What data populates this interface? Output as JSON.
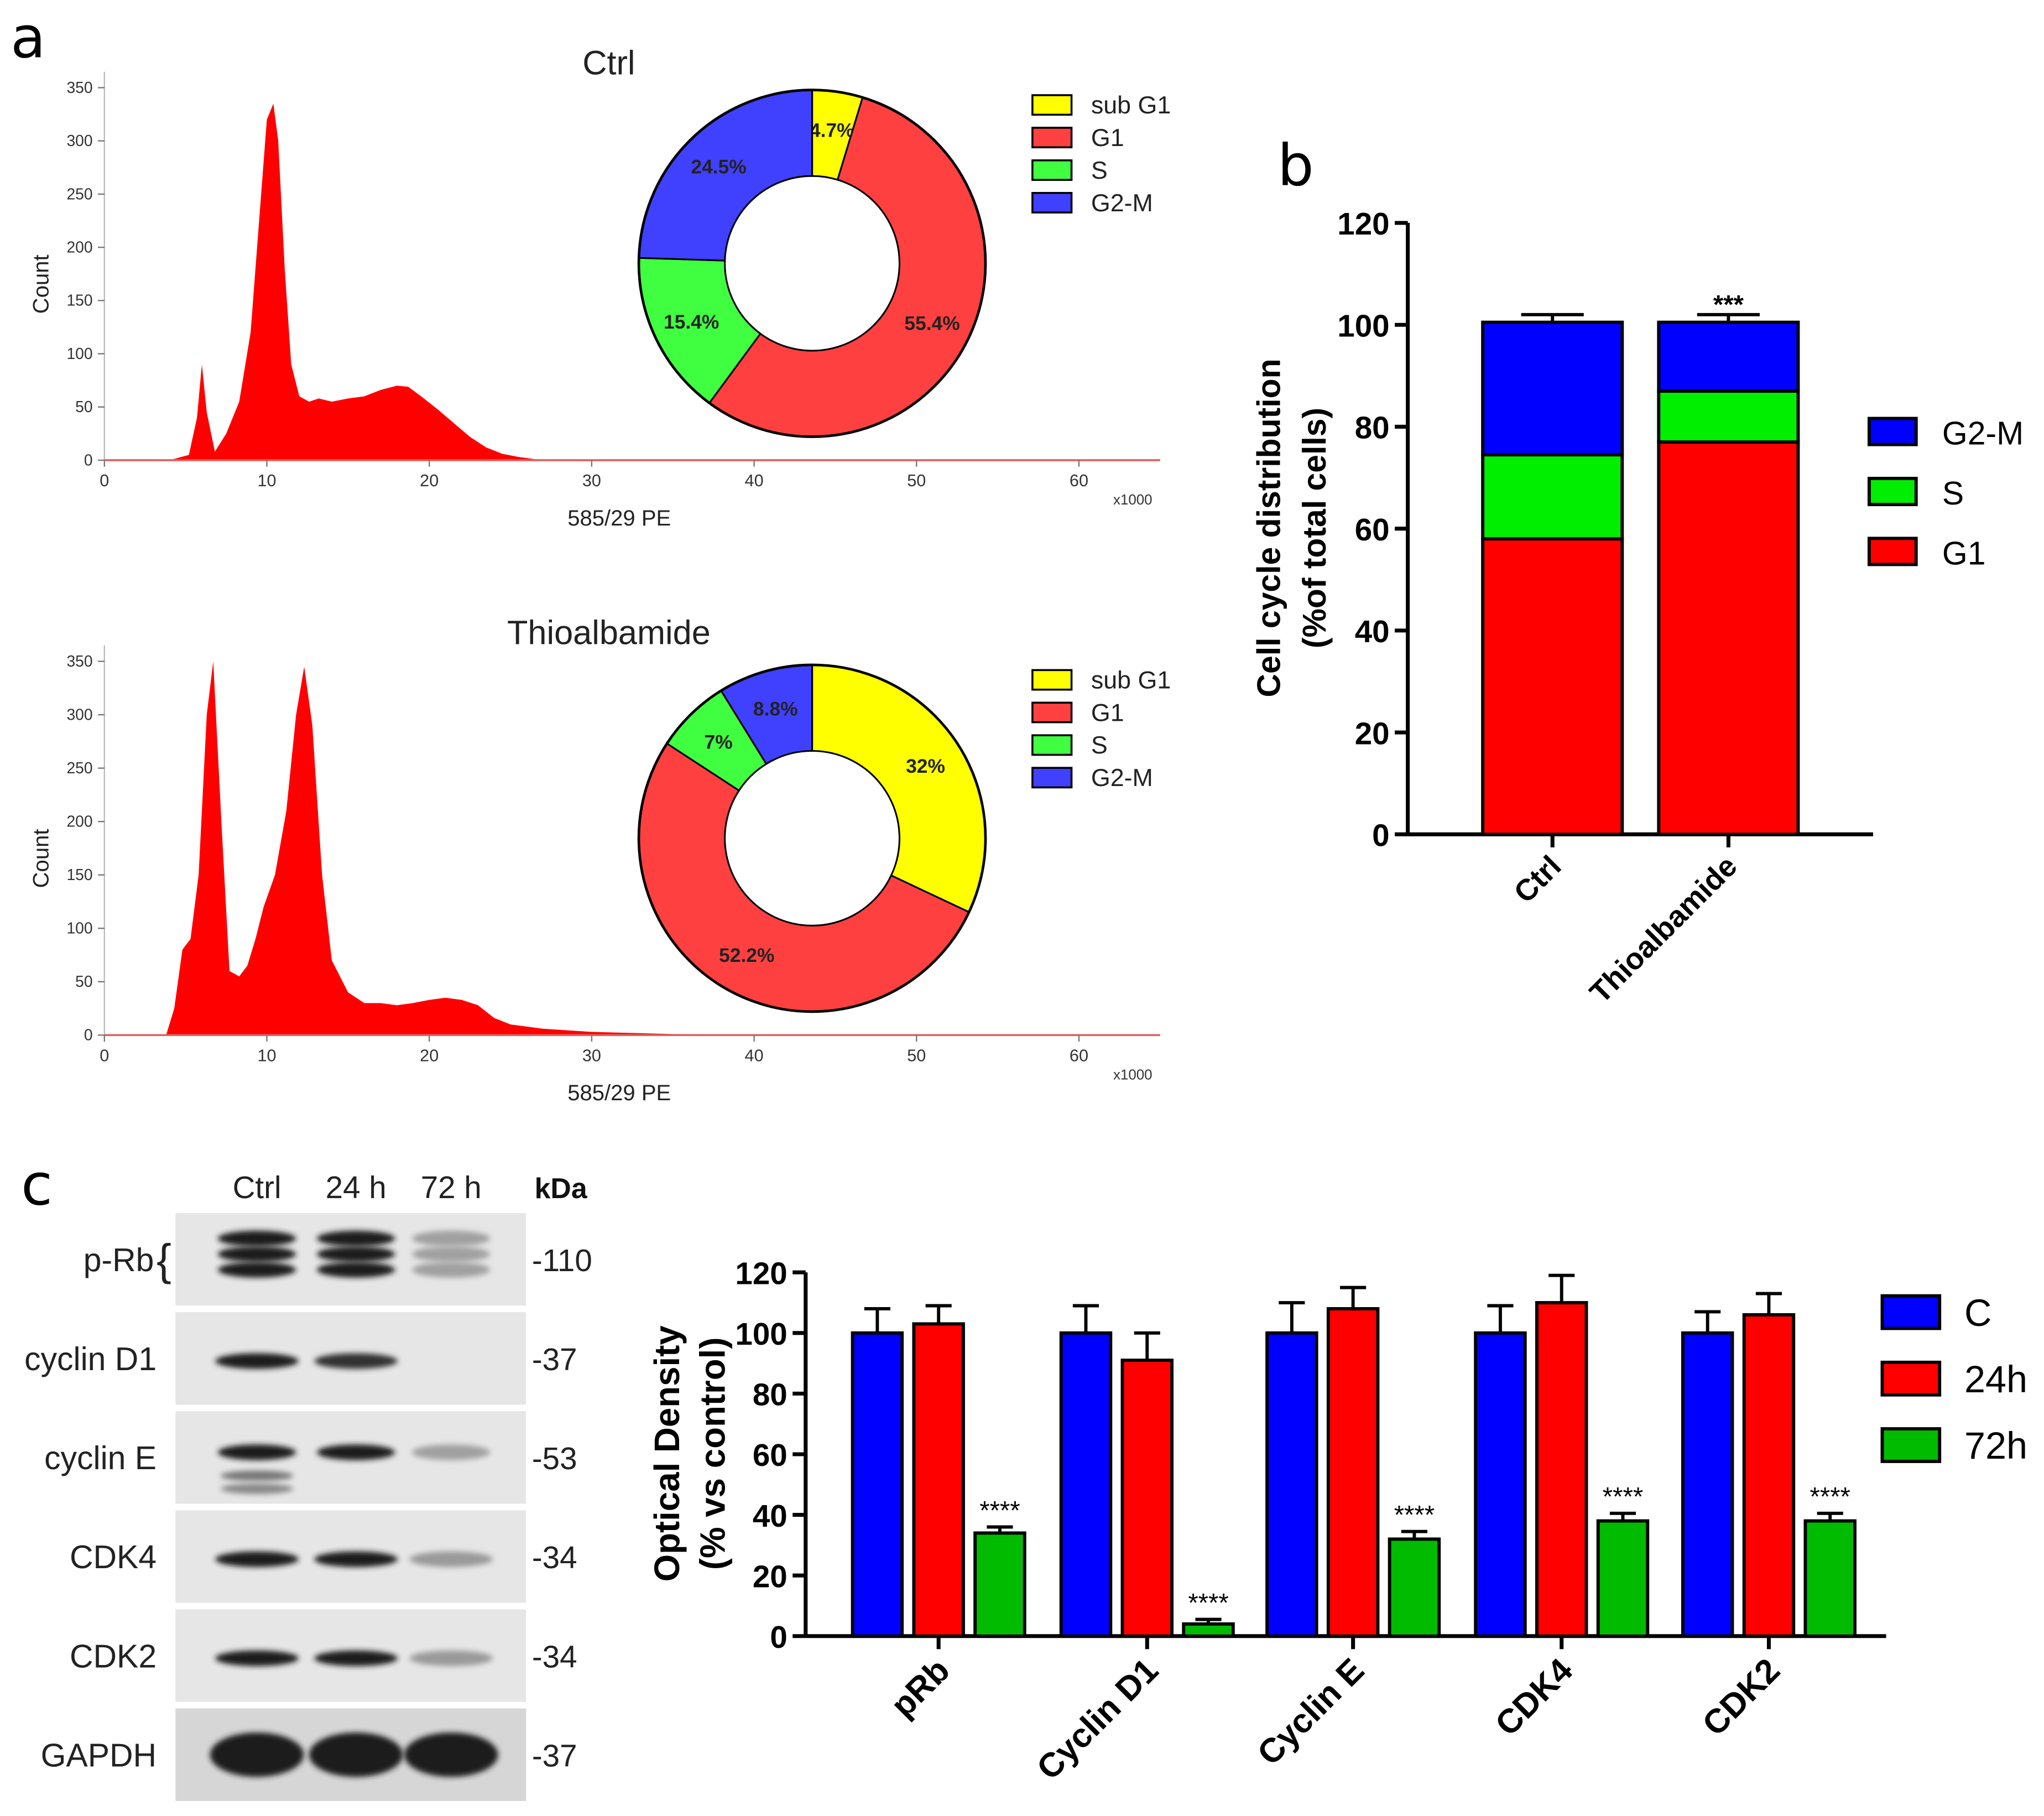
{
  "panel_labels": {
    "a": "a",
    "b": "b",
    "c": "c"
  },
  "colors": {
    "sub_g1": "#ffff00",
    "g1": "#ff4040",
    "s": "#40ff40",
    "g2m": "#4040ff",
    "hist": "#ff0000",
    "bar_g1": "#ff0000",
    "bar_s": "#00ee00",
    "bar_g2m": "#0000ff",
    "od_c": "#0000ff",
    "od_24h": "#ff0000",
    "od_72h": "#00bb00"
  },
  "chart_data": [
    {
      "id": "hist-ctrl",
      "type": "area",
      "title": "Ctrl",
      "xlabel": "585/29 PE",
      "ylabel": "Count",
      "x_multiplier": "x1000",
      "xlim": [
        0,
        65
      ],
      "ylim": [
        0,
        365
      ],
      "xticks": [
        0,
        10,
        20,
        30,
        40,
        50,
        60
      ],
      "yticks": [
        0,
        50,
        100,
        150,
        200,
        250,
        300,
        350
      ],
      "x": [
        0,
        4,
        5.2,
        5.7,
        6.0,
        6.3,
        6.8,
        7.5,
        8.3,
        9.0,
        9.5,
        10.0,
        10.4,
        10.7,
        11.1,
        11.5,
        12.0,
        12.6,
        13.2,
        14,
        15,
        16,
        17,
        18,
        18.7,
        19.5,
        20.5,
        21.5,
        22.5,
        23.5,
        24.5,
        25.5,
        27,
        65
      ],
      "values": [
        0,
        0,
        5,
        40,
        90,
        45,
        8,
        25,
        55,
        120,
        220,
        320,
        335,
        300,
        180,
        90,
        60,
        55,
        58,
        55,
        58,
        60,
        66,
        70,
        69,
        60,
        48,
        35,
        22,
        12,
        6,
        3,
        0,
        0
      ]
    },
    {
      "id": "donut-ctrl",
      "type": "pie",
      "categories": [
        "sub G1",
        "G1",
        "S",
        "G2-M"
      ],
      "values": [
        4.7,
        55.4,
        15.4,
        24.5
      ],
      "labels": [
        "4.7%",
        "55.4%",
        "15.4%",
        "24.5%"
      ],
      "legend_position": "right"
    },
    {
      "id": "hist-thio",
      "type": "area",
      "title": "Thioalbamide",
      "xlabel": "585/29 PE",
      "ylabel": "Count",
      "x_multiplier": "x1000",
      "xlim": [
        0,
        65
      ],
      "ylim": [
        0,
        365
      ],
      "xticks": [
        0,
        10,
        20,
        30,
        40,
        50,
        60
      ],
      "yticks": [
        0,
        50,
        100,
        150,
        200,
        250,
        300,
        350
      ],
      "x": [
        0,
        3.8,
        4.3,
        4.8,
        5.3,
        5.8,
        6.3,
        6.7,
        7.2,
        7.7,
        8.3,
        8.8,
        9.3,
        9.8,
        10.5,
        11.2,
        11.8,
        12.3,
        12.8,
        13.4,
        14,
        15,
        16,
        17,
        18,
        19,
        20,
        21,
        22,
        23,
        24,
        25,
        27,
        30,
        35,
        65
      ],
      "values": [
        0,
        0,
        25,
        80,
        90,
        150,
        300,
        350,
        200,
        60,
        55,
        65,
        90,
        120,
        150,
        210,
        300,
        345,
        290,
        150,
        70,
        40,
        30,
        30,
        28,
        30,
        33,
        35,
        33,
        28,
        16,
        10,
        6,
        3,
        1,
        0
      ]
    },
    {
      "id": "donut-thio",
      "type": "pie",
      "categories": [
        "sub G1",
        "G1",
        "S",
        "G2-M"
      ],
      "values": [
        32,
        52.2,
        7,
        8.8
      ],
      "labels": [
        "32%",
        "52.2%",
        "7%",
        "8.8%"
      ],
      "legend_position": "right"
    },
    {
      "id": "stacked-b",
      "type": "bar",
      "stacked": true,
      "categories": [
        "Ctrl",
        "Thioalbamide"
      ],
      "ylabel": "Cell cycle distribution\n(%of total cells)",
      "ylim": [
        0,
        120
      ],
      "yticks": [
        0,
        20,
        40,
        60,
        80,
        100,
        120
      ],
      "series": [
        {
          "name": "G1",
          "values": [
            58,
            77
          ],
          "errors": [
            3,
            3.5
          ]
        },
        {
          "name": "S",
          "values": [
            16.5,
            10
          ],
          "errors": [
            1.5,
            1.5
          ]
        },
        {
          "name": "G2-M",
          "values": [
            26,
            13.5
          ],
          "errors": [
            1.5,
            1.5
          ]
        }
      ],
      "legend_order": [
        "G2-M",
        "S",
        "G1"
      ],
      "legend_position": "right",
      "annotations": [
        {
          "category": "Thioalbamide",
          "series": "G2-M",
          "text": "***"
        },
        {
          "category": "Thioalbamide",
          "series": "S",
          "text": "****"
        }
      ]
    },
    {
      "id": "grouped-c",
      "type": "bar",
      "categories": [
        "pRb",
        "Cyclin D1",
        "Cyclin E",
        "CDK4",
        "CDK2"
      ],
      "ylabel": "Optical Density\n(% vs control)",
      "ylim": [
        0,
        120
      ],
      "yticks": [
        0,
        20,
        40,
        60,
        80,
        100,
        120
      ],
      "series": [
        {
          "name": "C",
          "values": [
            100,
            100,
            100,
            100,
            100
          ],
          "errors": [
            8,
            9,
            10,
            9,
            7
          ]
        },
        {
          "name": "24h",
          "values": [
            103,
            91,
            108,
            110,
            106
          ],
          "errors": [
            6,
            9,
            7,
            9,
            7
          ]
        },
        {
          "name": "72h",
          "values": [
            34,
            4,
            32,
            38,
            38
          ],
          "errors": [
            2,
            1.5,
            2.5,
            2.5,
            2.5
          ]
        }
      ],
      "annotations": [
        {
          "category": "pRb",
          "series": "72h",
          "text": "****"
        },
        {
          "category": "Cyclin D1",
          "series": "72h",
          "text": "****"
        },
        {
          "category": "Cyclin E",
          "series": "72h",
          "text": "****"
        },
        {
          "category": "CDK4",
          "series": "72h",
          "text": "****"
        },
        {
          "category": "CDK2",
          "series": "72h",
          "text": "****"
        }
      ],
      "legend_position": "right"
    }
  ],
  "blot": {
    "lanes": [
      "Ctrl",
      "24 h",
      "72 h"
    ],
    "kda_header": "kDa",
    "rows": [
      {
        "label": "p-Rb",
        "kda": "-110",
        "brace": "{",
        "intensity": [
          1.0,
          1.0,
          0.35
        ]
      },
      {
        "label": "cyclin D1",
        "kda": "-37",
        "intensity": [
          1.0,
          0.9,
          0.04
        ]
      },
      {
        "label": "cyclin E",
        "kda": "-53",
        "intensity": [
          1.0,
          1.0,
          0.35
        ]
      },
      {
        "label": "CDK4",
        "kda": "-34",
        "intensity": [
          1.0,
          1.0,
          0.38
        ]
      },
      {
        "label": "CDK2",
        "kda": "-34",
        "intensity": [
          1.0,
          1.0,
          0.38
        ]
      },
      {
        "label": "GAPDH",
        "kda": "-37",
        "intensity": [
          1.0,
          1.0,
          1.0
        ]
      }
    ]
  }
}
